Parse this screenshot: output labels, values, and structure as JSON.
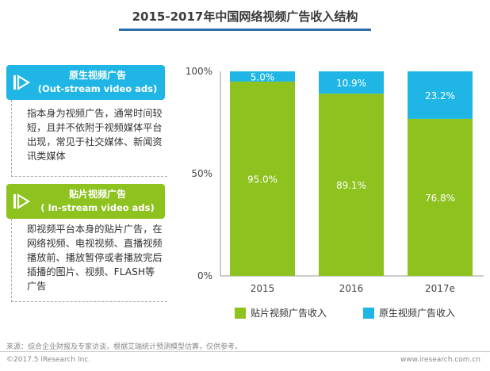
{
  "title": "2015-2017年中国网络视频广告收入结构",
  "left_panel": {
    "outstream": {
      "title_cn": "原生视频广告",
      "title_en": "(Out-stream video ads)",
      "description": "指本身为视频广告，通常时间较短，且并不依附于视频媒体平台出现，常见于社交媒体、新闻资讯类媒体"
    },
    "instream": {
      "title_cn": "贴片视频广告",
      "title_en": "( In-stream video ads)",
      "description": "即视频平台本身的贴片广告，在网络视频、电视视频、直播视频播放前、播放暂停或者播放完后插播的图片、视频、FLASH等广告"
    },
    "icon": "play-icon"
  },
  "chart_data": {
    "type": "bar",
    "stacked": true,
    "categories": [
      "2015",
      "2016",
      "2017e"
    ],
    "series": [
      {
        "name": "贴片视频广告收入",
        "values": [
          95.0,
          89.1,
          76.8
        ],
        "labels": [
          "95.0%",
          "89.1%",
          "76.8%"
        ],
        "color": "#8dc21f"
      },
      {
        "name": "原生视频广告收入",
        "values": [
          5.0,
          10.9,
          23.2
        ],
        "labels": [
          "5.0%",
          "10.9%",
          "23.2%"
        ],
        "color": "#1fb6e6"
      }
    ],
    "ylim": [
      0,
      100
    ],
    "yticks": [
      "0%",
      "50%",
      "100%"
    ],
    "ytick_values": [
      0,
      50,
      100
    ],
    "grid": false,
    "legend_position": "bottom"
  },
  "footer": {
    "source": "来源：综合企业财报及专家访谈，根据艾瑞统计预测模型估算，仅供参考。",
    "copyright": "©2017.5 iResearch Inc.",
    "website": "www.iresearch.com.cn"
  }
}
